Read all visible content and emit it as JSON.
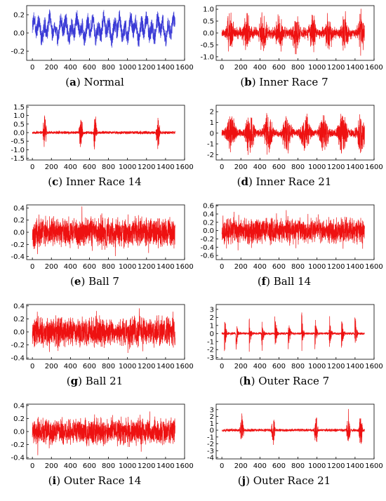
{
  "chart_data": [
    {
      "id": "a",
      "label_letter": "a",
      "caption": "Normal",
      "type": "line",
      "color": "#3b3bd6",
      "x_range": [
        0,
        1500
      ],
      "xlim": [
        -60,
        1600
      ],
      "xticks": [
        0,
        200,
        400,
        600,
        800,
        1000,
        1200,
        1400,
        1600
      ],
      "ylim": [
        -0.3,
        0.3
      ],
      "yticks": [
        "0.2",
        "0.0",
        "-0.2"
      ],
      "ytick_values": [
        0.2,
        0,
        -0.2
      ],
      "amplitude": 0.17,
      "mean": 0.05,
      "pattern": "sinusoidal-noise",
      "seed": 3
    },
    {
      "id": "b",
      "label_letter": "b",
      "caption": "Inner Race 7",
      "type": "line",
      "color": "#ee1111",
      "x_range": [
        0,
        1500
      ],
      "xlim": [
        -60,
        1600
      ],
      "xticks": [
        0,
        200,
        400,
        600,
        800,
        1000,
        1200,
        1400,
        1600
      ],
      "ylim": [
        -1.15,
        1.15
      ],
      "yticks": [
        "1.0",
        "0.5",
        "0.0",
        "-0.5",
        "-1.0"
      ],
      "ytick_values": [
        1,
        0.5,
        0,
        -0.5,
        -1
      ],
      "amplitude": 1.05,
      "mean": 0,
      "pattern": "dense-impulses",
      "seed": 7
    },
    {
      "id": "c",
      "label_letter": "c",
      "caption": "Inner Race 14",
      "type": "line",
      "color": "#ee1111",
      "x_range": [
        0,
        1500
      ],
      "xlim": [
        -60,
        1600
      ],
      "xticks": [
        0,
        200,
        400,
        600,
        800,
        1000,
        1200,
        1400,
        1600
      ],
      "ylim": [
        -1.6,
        1.6
      ],
      "yticks": [
        "1.5",
        "1.0",
        "0.5",
        "0.0",
        "-0.5",
        "-1.0",
        "-1.5"
      ],
      "ytick_values": [
        1.5,
        1,
        0.5,
        0,
        -0.5,
        -1,
        -1.5
      ],
      "amplitude": 1.5,
      "mean": 0,
      "pattern": "sparse-impulses",
      "impulses": [
        130,
        510,
        660,
        1320
      ],
      "seed": 11
    },
    {
      "id": "d",
      "label_letter": "d",
      "caption": "Inner Race 21",
      "type": "line",
      "color": "#ee1111",
      "x_range": [
        0,
        1500
      ],
      "xlim": [
        -60,
        1600
      ],
      "xticks": [
        0,
        200,
        400,
        600,
        800,
        1000,
        1200,
        1400,
        1600
      ],
      "ylim": [
        -2.5,
        2.6
      ],
      "yticks": [
        "2",
        "1",
        "0",
        "-1",
        "-2"
      ],
      "ytick_values": [
        2,
        1,
        0,
        -1,
        -2
      ],
      "amplitude": 2.3,
      "mean": 0,
      "pattern": "bursty",
      "seed": 13
    },
    {
      "id": "e",
      "label_letter": "e",
      "caption": "Ball 7",
      "type": "line",
      "color": "#ee1111",
      "x_range": [
        0,
        1500
      ],
      "xlim": [
        -60,
        1600
      ],
      "xticks": [
        0,
        200,
        400,
        600,
        800,
        1000,
        1200,
        1400,
        1600
      ],
      "ylim": [
        -0.45,
        0.45
      ],
      "yticks": [
        "0.4",
        "0.2",
        "0.0",
        "-0.2",
        "-0.4"
      ],
      "ytick_values": [
        0.4,
        0.2,
        0,
        -0.2,
        -0.4
      ],
      "amplitude": 0.36,
      "mean": 0,
      "pattern": "dense-noise",
      "seed": 17
    },
    {
      "id": "f",
      "label_letter": "f",
      "caption": "Ball 14",
      "type": "line",
      "color": "#ee1111",
      "x_range": [
        0,
        1500
      ],
      "xlim": [
        -60,
        1600
      ],
      "xticks": [
        0,
        200,
        400,
        600,
        800,
        1000,
        1200,
        1400,
        1600
      ],
      "ylim": [
        -0.7,
        0.62
      ],
      "yticks": [
        "0.6",
        "0.4",
        "0.2",
        "0.0",
        "-0.2",
        "-0.4",
        "-0.6"
      ],
      "ytick_values": [
        0.6,
        0.4,
        0.2,
        0,
        -0.2,
        -0.4,
        -0.6
      ],
      "amplitude": 0.45,
      "mean": 0,
      "pattern": "dense-noise",
      "seed": 19
    },
    {
      "id": "g",
      "label_letter": "g",
      "caption": "Ball 21",
      "type": "line",
      "color": "#ee1111",
      "x_range": [
        0,
        1500
      ],
      "xlim": [
        -60,
        1600
      ],
      "xticks": [
        0,
        200,
        400,
        600,
        800,
        1000,
        1200,
        1400,
        1600
      ],
      "ylim": [
        -0.42,
        0.42
      ],
      "yticks": [
        "0.4",
        "0.2",
        "0.0",
        "-0.2",
        "-0.4"
      ],
      "ytick_values": [
        0.4,
        0.2,
        0,
        -0.2,
        -0.4
      ],
      "amplitude": 0.33,
      "mean": 0,
      "pattern": "dense-noise",
      "seed": 23
    },
    {
      "id": "h",
      "label_letter": "h",
      "caption": "Outer Race 7",
      "type": "line",
      "color": "#ee1111",
      "x_range": [
        0,
        1500
      ],
      "xlim": [
        -60,
        1600
      ],
      "xticks": [
        0,
        200,
        400,
        600,
        800,
        1000,
        1200,
        1400,
        1600
      ],
      "ylim": [
        -3.2,
        3.6
      ],
      "yticks": [
        "3",
        "2",
        "1",
        "0",
        "-1",
        "-2",
        "-3"
      ],
      "ytick_values": [
        3,
        2,
        1,
        0,
        -1,
        -2,
        -3
      ],
      "amplitude": 3.0,
      "mean": 0,
      "pattern": "periodic-impulses",
      "impulses": [
        30,
        150,
        290,
        420,
        560,
        700,
        840,
        980,
        1130,
        1260,
        1400
      ],
      "seed": 29
    },
    {
      "id": "i",
      "label_letter": "i",
      "caption": "Outer Race 14",
      "type": "line",
      "color": "#ee1111",
      "x_range": [
        0,
        1500
      ],
      "xlim": [
        -60,
        1600
      ],
      "xticks": [
        0,
        200,
        400,
        600,
        800,
        1000,
        1200,
        1400,
        1600
      ],
      "ylim": [
        -0.42,
        0.42
      ],
      "yticks": [
        "0.4",
        "0.2",
        "0.0",
        "-0.2",
        "-0.4"
      ],
      "ytick_values": [
        0.4,
        0.2,
        0,
        -0.2,
        -0.4
      ],
      "amplitude": 0.3,
      "mean": 0,
      "pattern": "dense-noise",
      "seed": 31
    },
    {
      "id": "j",
      "label_letter": "j",
      "caption": "Outer Race 21",
      "type": "line",
      "color": "#ee1111",
      "x_range": [
        0,
        1500
      ],
      "xlim": [
        -60,
        1600
      ],
      "xticks": [
        0,
        200,
        400,
        600,
        800,
        1000,
        1200,
        1400,
        1600
      ],
      "ylim": [
        -4.2,
        3.8
      ],
      "yticks": [
        "3",
        "2",
        "1",
        "0",
        "-1",
        "-2",
        "-3",
        "-4"
      ],
      "ytick_values": [
        3,
        2,
        1,
        0,
        -1,
        -2,
        -3,
        -4
      ],
      "amplitude": 3.6,
      "mean": 0,
      "pattern": "sparse-impulses",
      "impulses": [
        210,
        540,
        990,
        1330,
        1460
      ],
      "seed": 37
    }
  ]
}
